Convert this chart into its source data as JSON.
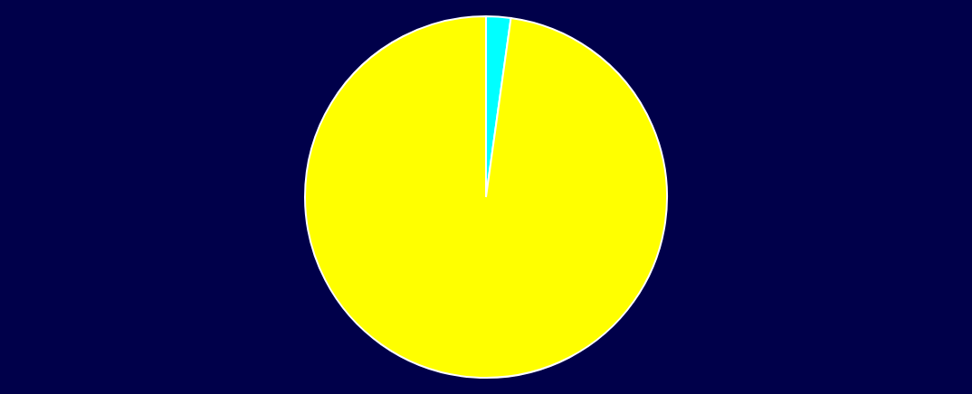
{
  "chart_data": {
    "type": "pie",
    "categories": [
      null,
      null
    ],
    "values": [
      2.2,
      97.8
    ],
    "colors": [
      "#00ffff",
      "#ffff00"
    ]
  }
}
